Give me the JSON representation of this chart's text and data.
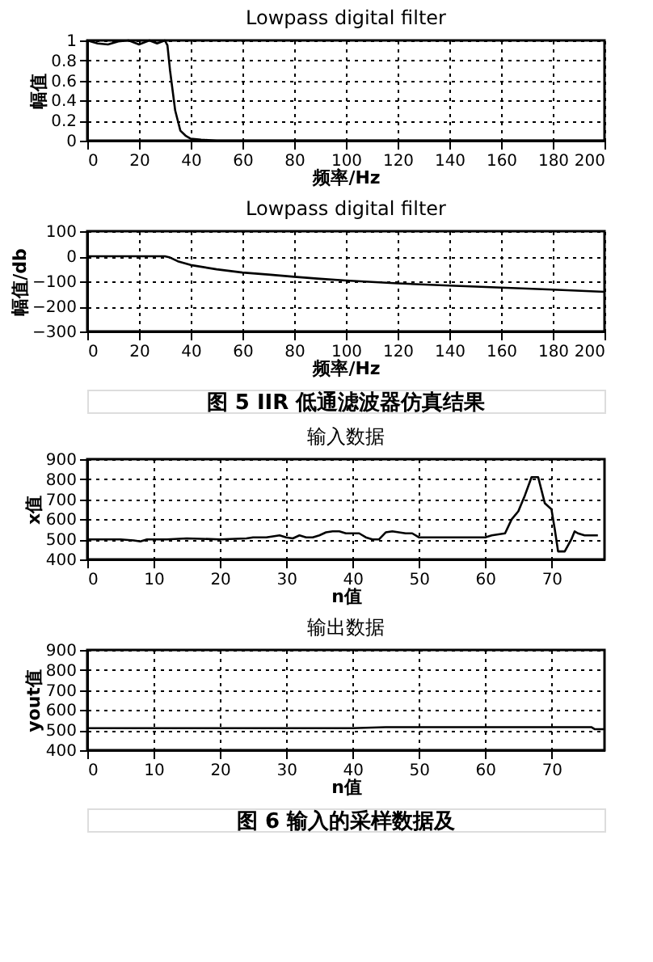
{
  "chart_data": [
    {
      "type": "line",
      "title": "Lowpass digital filter",
      "xlabel": "频率/Hz",
      "ylabel": "幅值",
      "xlim": [
        0,
        200
      ],
      "ylim": [
        0,
        1
      ],
      "xticks": [
        0,
        20,
        40,
        60,
        80,
        100,
        120,
        140,
        160,
        180,
        200
      ],
      "yticks": [
        0,
        0.2,
        0.4,
        0.6,
        0.8,
        1
      ],
      "grid": true,
      "line_style": "solid",
      "series": [
        {
          "color": "#000000",
          "x": [
            0,
            4,
            8,
            12,
            16,
            20,
            24,
            27,
            30,
            31,
            32,
            33,
            34,
            35,
            36,
            38,
            40,
            44,
            50,
            100,
            200
          ],
          "values": [
            1,
            0.97,
            0.96,
            0.99,
            1,
            0.96,
            1,
            0.97,
            1,
            0.95,
            0.7,
            0.5,
            0.3,
            0.2,
            0.1,
            0.05,
            0.02,
            0.01,
            0,
            0,
            0
          ]
        }
      ]
    },
    {
      "type": "line",
      "title": "Lowpass digital filter",
      "xlabel": "频率/Hz",
      "ylabel": "幅值/db",
      "xlim": [
        0,
        200
      ],
      "ylim": [
        -300,
        100
      ],
      "xticks": [
        0,
        20,
        40,
        60,
        80,
        100,
        120,
        140,
        160,
        180,
        200
      ],
      "yticks": [
        -300,
        -200,
        -100,
        0,
        100
      ],
      "grid": true,
      "line_style": "solid",
      "annotations": [
        "图 5  IIR 低通滤波器仿真结果"
      ],
      "series": [
        {
          "color": "#000000",
          "x": [
            0,
            30,
            32,
            35,
            40,
            50,
            60,
            70,
            80,
            90,
            100,
            120,
            140,
            160,
            180,
            200
          ],
          "values": [
            0,
            0,
            -5,
            -20,
            -35,
            -52,
            -65,
            -73,
            -82,
            -90,
            -97,
            -108,
            -117,
            -125,
            -133,
            -142
          ]
        }
      ]
    },
    {
      "type": "line",
      "title": "输入数据",
      "xlabel": "n值",
      "ylabel": "x值",
      "xlim": [
        0,
        78
      ],
      "ylim": [
        400,
        900
      ],
      "xticks": [
        0,
        10,
        20,
        30,
        40,
        50,
        60,
        70
      ],
      "yticks": [
        400,
        500,
        600,
        700,
        800,
        900
      ],
      "grid": true,
      "line_style": "solid",
      "series": [
        {
          "color": "#000000",
          "x": [
            0,
            5,
            7,
            8,
            9,
            12,
            15,
            20,
            24,
            25,
            27,
            28,
            29,
            30,
            31,
            32,
            33,
            34,
            35,
            36,
            37,
            38,
            39,
            40,
            41,
            42,
            43,
            44,
            45,
            46,
            47,
            48,
            49,
            50,
            55,
            60,
            61,
            63,
            64,
            65,
            66,
            67,
            68,
            69,
            70,
            70.5,
            71,
            72,
            73,
            73.5,
            74,
            75,
            77
          ],
          "values": [
            500,
            500,
            495,
            490,
            500,
            500,
            505,
            500,
            505,
            510,
            510,
            515,
            520,
            510,
            505,
            520,
            510,
            510,
            520,
            535,
            540,
            540,
            530,
            530,
            530,
            510,
            500,
            500,
            535,
            540,
            535,
            530,
            530,
            510,
            510,
            510,
            520,
            530,
            600,
            640,
            720,
            810,
            810,
            680,
            650,
            550,
            440,
            440,
            500,
            540,
            530,
            520,
            520
          ]
        }
      ]
    },
    {
      "type": "line",
      "title": "输出数据",
      "xlabel": "n值",
      "ylabel": "yout值",
      "xlim": [
        0,
        78
      ],
      "ylim": [
        400,
        900
      ],
      "xticks": [
        0,
        10,
        20,
        30,
        40,
        50,
        60,
        70
      ],
      "yticks": [
        400,
        500,
        600,
        700,
        800,
        900
      ],
      "grid": true,
      "line_style": "solid",
      "annotations": [
        "图 6  输入的采样数据及"
      ],
      "series": [
        {
          "color": "#000000",
          "x": [
            0,
            40,
            45,
            76,
            76.5,
            78
          ],
          "values": [
            510,
            510,
            515,
            515,
            505,
            505
          ]
        }
      ]
    }
  ]
}
